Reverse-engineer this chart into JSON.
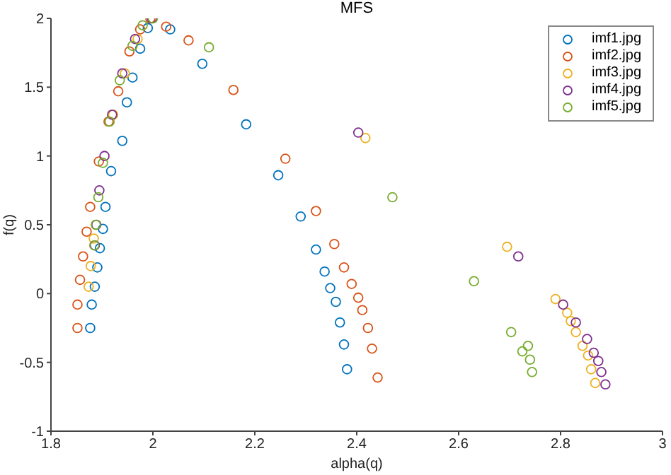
{
  "chart_data": {
    "type": "scatter",
    "title": "MFS",
    "xlabel": "alpha(q)",
    "ylabel": "f(q)",
    "xlim": [
      1.8,
      3
    ],
    "xticks": [
      1.8,
      2,
      2.2,
      2.4,
      2.6,
      2.8,
      3
    ],
    "ylim": [
      -1,
      2
    ],
    "yticks": [
      -1,
      -0.5,
      0,
      0.5,
      1,
      1.5,
      2
    ],
    "legend": "top right",
    "marker": "circle",
    "series": [
      {
        "name": "imf1.jpg",
        "color": "#0072bd",
        "x": [
          1.877,
          1.88,
          1.886,
          1.891,
          1.896,
          1.902,
          1.907,
          1.918,
          1.94,
          1.949,
          1.96,
          1.975,
          1.99,
          2.0,
          2.034,
          2.097,
          2.183,
          2.246,
          2.29,
          2.32,
          2.337,
          2.348,
          2.359,
          2.367,
          2.375,
          2.381
        ],
        "values": [
          -0.25,
          -0.08,
          0.05,
          0.19,
          0.33,
          0.47,
          0.63,
          0.89,
          1.11,
          1.39,
          1.57,
          1.78,
          1.93,
          null,
          1.92,
          1.67,
          1.23,
          0.86,
          0.56,
          0.32,
          0.16,
          0.04,
          -0.06,
          -0.21,
          -0.37,
          -0.55
        ]
      },
      {
        "name": "imf2.jpg",
        "color": "#d95319",
        "x": [
          1.852,
          1.852,
          1.857,
          1.863,
          1.87,
          1.877,
          1.894,
          1.913,
          1.932,
          1.954,
          1.975,
          1.995,
          2.026,
          2.07,
          2.158,
          2.26,
          2.32,
          2.356,
          2.375,
          2.39,
          2.403,
          2.411,
          2.422,
          2.43,
          2.441
        ],
        "values": [
          -0.25,
          -0.08,
          0.1,
          0.27,
          0.45,
          0.63,
          0.96,
          1.25,
          1.47,
          1.76,
          1.92,
          2.0,
          1.94,
          1.84,
          1.48,
          0.98,
          0.6,
          0.36,
          0.19,
          0.07,
          -0.03,
          -0.12,
          -0.25,
          -0.4,
          -0.61
        ]
      },
      {
        "name": "imf3.jpg",
        "color": "#edb120",
        "x": [
          1.874,
          1.878,
          1.884,
          1.893,
          1.905,
          1.922,
          1.945,
          1.97,
          1.998,
          2.417,
          2.695,
          2.79,
          2.813,
          2.82,
          2.83,
          2.843,
          2.854,
          2.86,
          2.868
        ],
        "values": [
          0.05,
          0.2,
          0.4,
          null,
          null,
          1.3,
          1.6,
          1.85,
          null,
          1.13,
          0.34,
          -0.04,
          -0.14,
          -0.2,
          -0.28,
          -0.38,
          -0.45,
          -0.55,
          -0.65
        ]
      },
      {
        "name": "imf4.jpg",
        "color": "#7e2f8e",
        "x": [
          1.886,
          1.889,
          1.895,
          1.905,
          1.92,
          1.94,
          1.965,
          1.998,
          2.403,
          2.717,
          2.805,
          2.83,
          2.852,
          2.865,
          2.874,
          2.88,
          2.888
        ],
        "values": [
          0.35,
          0.5,
          0.75,
          1.0,
          1.3,
          1.6,
          1.85,
          2.0,
          1.17,
          0.27,
          -0.08,
          -0.21,
          -0.33,
          -0.43,
          -0.49,
          -0.57,
          -0.66
        ]
      },
      {
        "name": "imf5.jpg",
        "color": "#77ac30",
        "x": [
          1.885,
          1.888,
          1.893,
          1.902,
          1.915,
          1.935,
          1.96,
          1.98,
          2.0,
          2.11,
          2.47,
          2.63,
          2.703,
          2.725,
          2.736,
          2.74,
          2.744
        ],
        "values": [
          0.35,
          0.5,
          0.7,
          0.95,
          1.25,
          1.55,
          1.8,
          1.95,
          2.0,
          1.79,
          0.7,
          0.09,
          -0.28,
          -0.42,
          -0.38,
          -0.48,
          -0.57
        ]
      }
    ]
  }
}
